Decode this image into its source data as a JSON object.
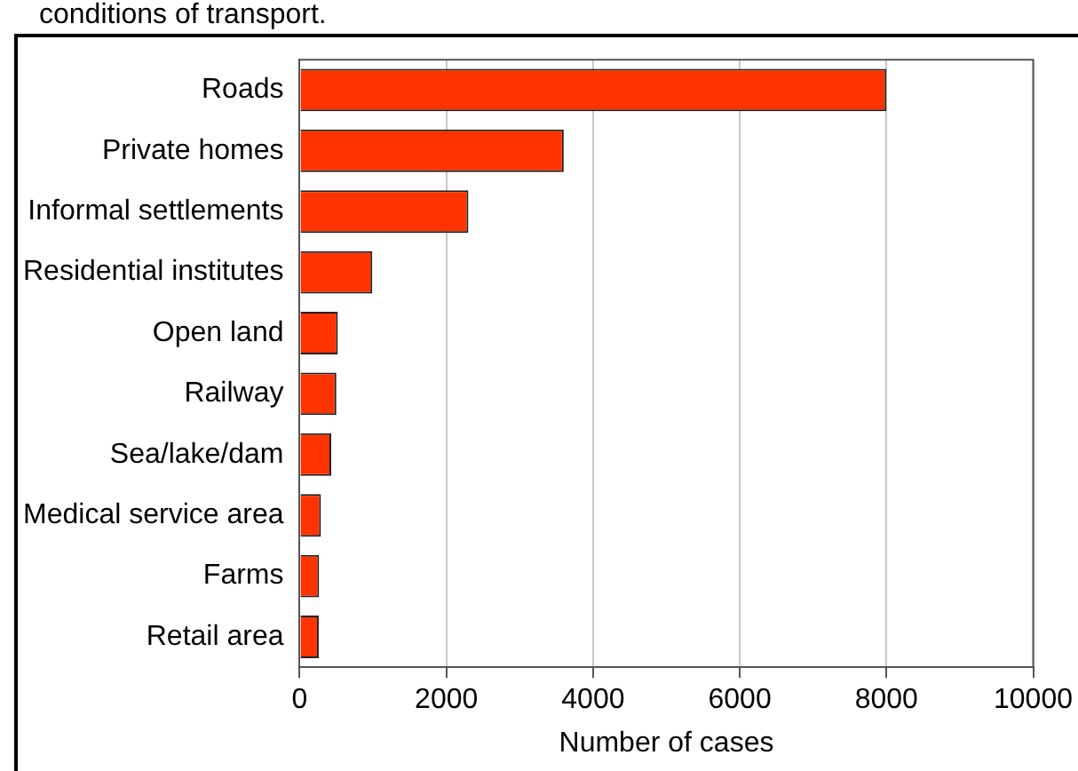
{
  "chart_data": {
    "type": "bar",
    "orientation": "horizontal",
    "annotations": [
      "conditions of transport."
    ],
    "categories": [
      "Roads",
      "Private homes",
      "Informal settlements",
      "Residential institutes",
      "Open land",
      "Railway",
      "Sea/lake/dam",
      "Medical service area",
      "Farms",
      "Retail area"
    ],
    "values": [
      8000,
      3600,
      2300,
      990,
      520,
      500,
      430,
      290,
      265,
      260
    ],
    "color": "#ff3300",
    "xlabel": "Number of cases",
    "xlim": [
      0,
      10000
    ],
    "xticks": [
      0,
      2000,
      4000,
      6000,
      8000,
      10000
    ],
    "grid": "x",
    "legend": false
  }
}
